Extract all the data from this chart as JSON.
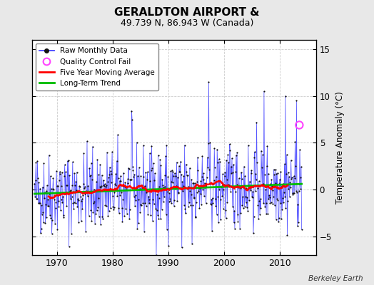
{
  "title": "GERALDTON AIRPORT &",
  "subtitle": "49.739 N, 86.943 W (Canada)",
  "ylabel": "Temperature Anomaly (°C)",
  "credit": "Berkeley Earth",
  "xlim": [
    1965.5,
    2016.5
  ],
  "ylim": [
    -7,
    16
  ],
  "yticks": [
    -5,
    0,
    5,
    10,
    15
  ],
  "xticks": [
    1970,
    1980,
    1990,
    2000,
    2010
  ],
  "background_color": "#e8e8e8",
  "plot_bg_color": "#ffffff",
  "line_color": "#4444ff",
  "marker_color": "#111111",
  "ma_color": "#ff0000",
  "trend_color": "#00bb00",
  "qc_color": "#ff44ff",
  "seed": 42,
  "n_months": 576,
  "start_year": 1966.0,
  "trend_slope": 0.022,
  "trend_intercept": -0.45,
  "qc_fail_year": 2013.5,
  "qc_fail_value": 6.9
}
